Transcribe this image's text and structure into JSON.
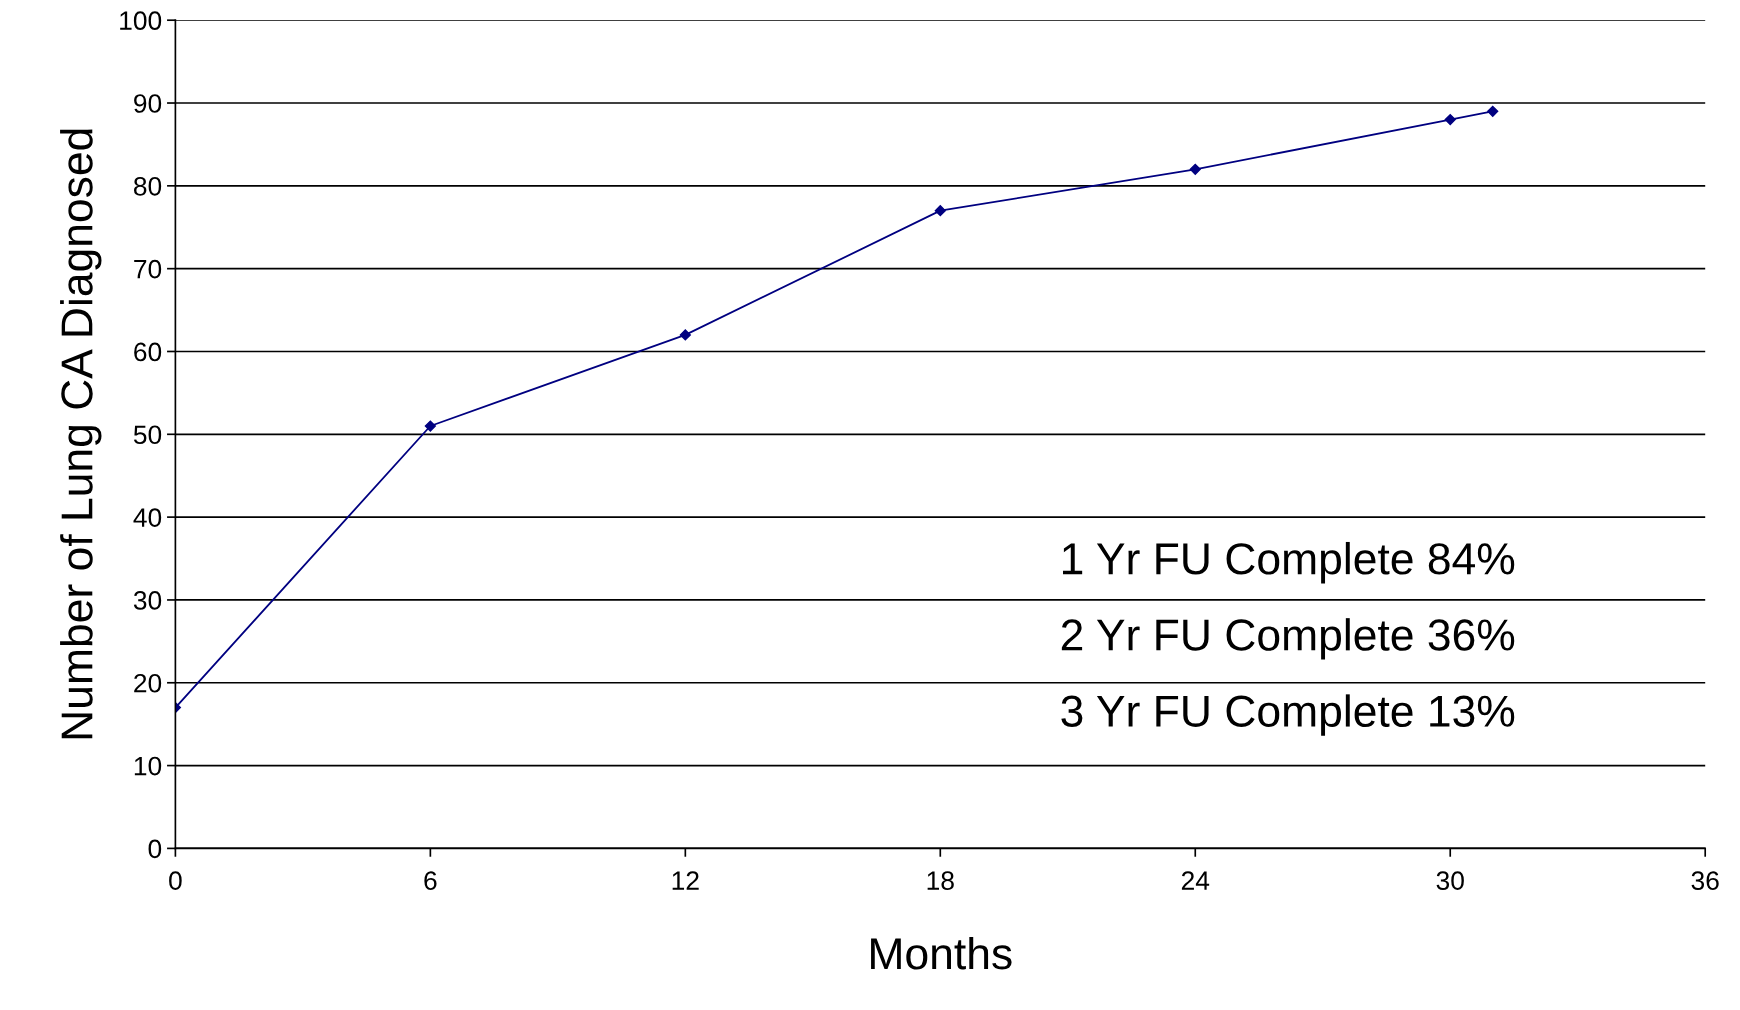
{
  "chart_data": {
    "type": "line",
    "xlabel": "Months",
    "ylabel": "Number of Lung CA Diagnosed",
    "x": [
      0,
      6,
      12,
      18,
      24,
      30,
      31
    ],
    "series": [
      {
        "color": "#000080",
        "values": [
          17,
          51,
          62,
          77,
          82,
          88,
          89
        ]
      }
    ],
    "xlim": [
      0,
      36
    ],
    "xticks": [
      0,
      6,
      12,
      18,
      24,
      30,
      36
    ],
    "ylim": [
      0,
      100
    ],
    "yticks": [
      0,
      10,
      20,
      30,
      40,
      50,
      60,
      70,
      80,
      90,
      100
    ],
    "grid": "y",
    "marker": "diamond",
    "line_style": "solid",
    "legend": false,
    "annotations": [
      "1 Yr FU Complete 84%",
      "2 Yr FU Complete 36%",
      "3 Yr FU Complete 13%"
    ]
  }
}
